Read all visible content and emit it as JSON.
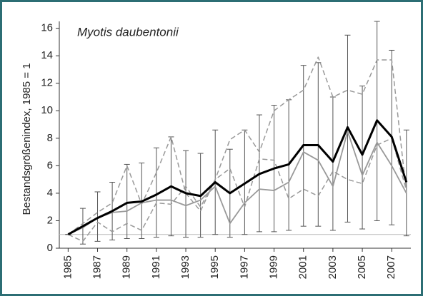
{
  "chart_data": {
    "type": "line",
    "title": "Myotis daubentonii",
    "y_label": "Bestandsgrößenindex, 1985 = 1",
    "x": [
      1985,
      1986,
      1987,
      1988,
      1989,
      1990,
      1991,
      1992,
      1993,
      1994,
      1995,
      1996,
      1997,
      1998,
      1999,
      2000,
      2001,
      2002,
      2003,
      2004,
      2005,
      2006,
      2007,
      2008
    ],
    "series": [
      {
        "color": "#999999",
        "style": "dashed",
        "width": 1.5,
        "values": [
          1,
          1.8,
          2.6,
          3.3,
          6.0,
          3.2,
          5.5,
          8.1,
          4.0,
          2.7,
          5.0,
          7.9,
          8.6,
          7.0,
          10.0,
          10.8,
          11.5,
          13.9,
          11.0,
          11.5,
          11.2,
          13.7,
          13.7,
          4.0
        ]
      },
      {
        "color": "#999999",
        "style": "dashed",
        "width": 1.5,
        "values": [
          1,
          0.5,
          1.9,
          1.2,
          1.8,
          1.3,
          3.3,
          3.2,
          4.5,
          3.0,
          5.0,
          5.8,
          3.0,
          6.5,
          6.4,
          3.6,
          4.3,
          3.8,
          5.6,
          5.0,
          4.7,
          7.5,
          8.0,
          4.2
        ]
      },
      {
        "color": "#999999",
        "style": "solid",
        "width": 1.8,
        "values": [
          1,
          1.5,
          2.2,
          2.6,
          2.7,
          3.3,
          3.5,
          3.5,
          3.1,
          3.5,
          4.5,
          1.8,
          3.3,
          4.3,
          4.2,
          4.8,
          7.0,
          6.4,
          4.5,
          8.5,
          5.3,
          7.7,
          6.0,
          4.0
        ]
      },
      {
        "color": "#000000",
        "style": "solid",
        "width": 3,
        "values": [
          1,
          1.6,
          2.2,
          2.7,
          3.3,
          3.4,
          3.9,
          4.5,
          4.0,
          3.8,
          4.8,
          4.0,
          4.7,
          5.4,
          5.8,
          6.1,
          7.5,
          7.5,
          6.3,
          8.8,
          6.8,
          9.3,
          8.1,
          4.8
        ],
        "error_upper": [
          1,
          2.9,
          4.1,
          4.8,
          6.1,
          6.2,
          7.3,
          8.1,
          7.1,
          6.9,
          8.6,
          7.2,
          8.6,
          9.7,
          10.4,
          10.8,
          13.3,
          13.5,
          11.0,
          15.5,
          11.8,
          16.5,
          14.4,
          8.6
        ],
        "error_lower": [
          1,
          0.3,
          0.5,
          0.6,
          0.7,
          0.7,
          0.8,
          0.9,
          0.8,
          0.8,
          1.0,
          0.8,
          1.0,
          1.2,
          1.2,
          1.3,
          1.6,
          1.6,
          1.3,
          1.9,
          1.4,
          2.0,
          1.7,
          0.9
        ]
      }
    ],
    "reference_line": 1,
    "xlim": [
      1984.4,
      2008.3
    ],
    "xticks": [
      1985,
      1987,
      1989,
      1991,
      1993,
      1995,
      1997,
      1999,
      2001,
      2003,
      2005,
      2007
    ],
    "ylim": [
      0,
      16.5
    ],
    "yticks": [
      0,
      2,
      4,
      6,
      8,
      10,
      12,
      14,
      16
    ]
  }
}
